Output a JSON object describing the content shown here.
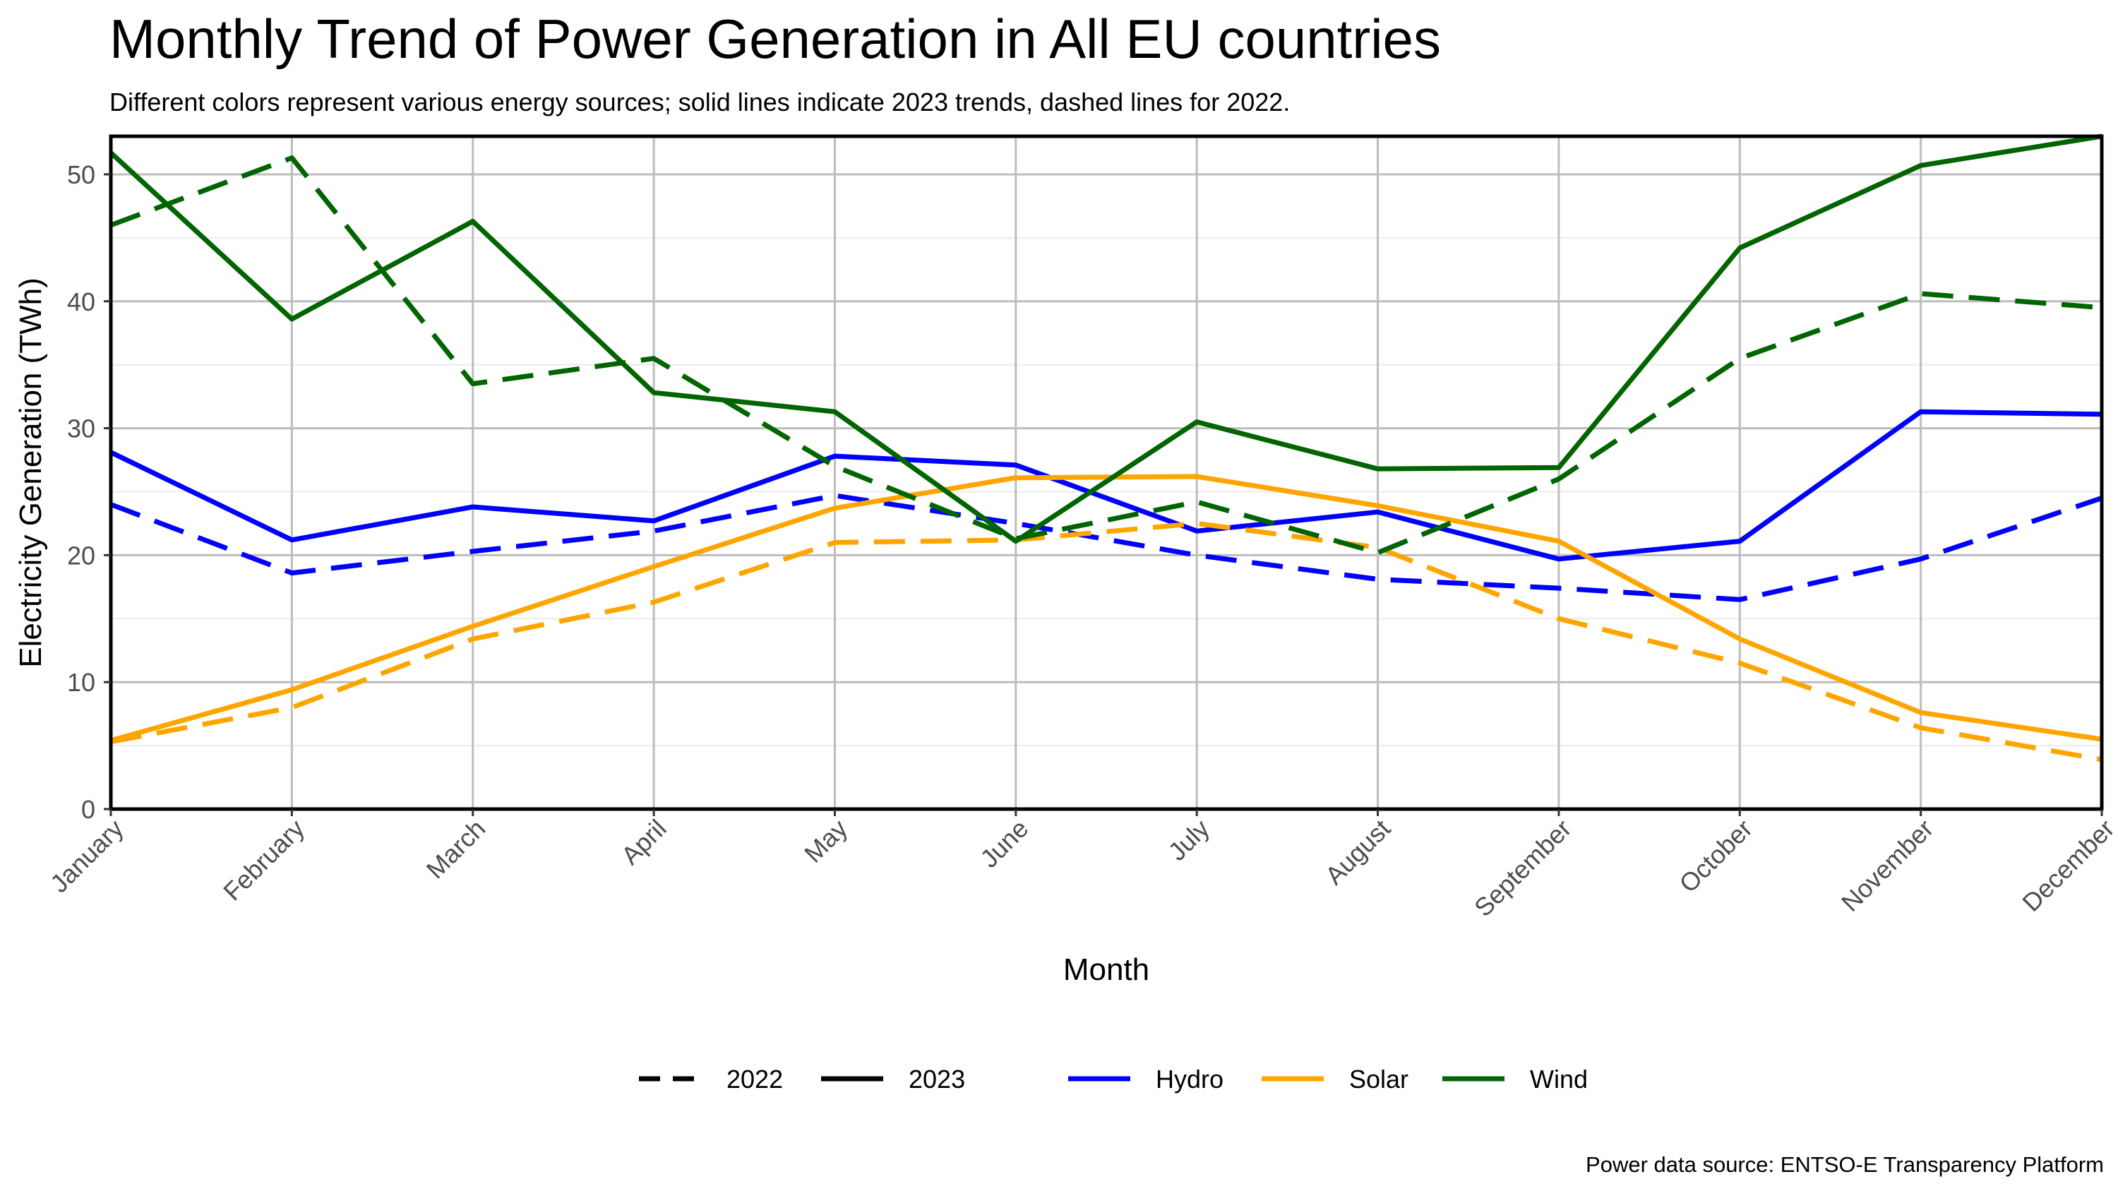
{
  "chart_data": {
    "type": "line",
    "title": "Monthly Trend of Power Generation in All EU countries",
    "subtitle": "Different colors represent various energy sources; solid lines indicate 2023 trends, dashed lines for 2022.",
    "xlabel": "Month",
    "ylabel": "Electricity Generation (TWh)",
    "caption": "Power data source: ENTSO-E Transparency Platform",
    "categories": [
      "January",
      "February",
      "March",
      "April",
      "May",
      "June",
      "July",
      "August",
      "September",
      "October",
      "November",
      "December"
    ],
    "ylim": [
      0,
      53
    ],
    "yticks": [
      0,
      10,
      20,
      30,
      40,
      50
    ],
    "grid": true,
    "legend_position": "bottom",
    "series": [
      {
        "source": "Hydro",
        "year": "2023",
        "color": "#0000FF",
        "dash": false,
        "values": [
          28.1,
          21.2,
          23.8,
          22.7,
          27.8,
          27.1,
          21.9,
          23.4,
          19.7,
          21.1,
          31.3,
          31.1
        ]
      },
      {
        "source": "Hydro",
        "year": "2022",
        "color": "#0000FF",
        "dash": true,
        "values": [
          24.0,
          18.6,
          20.3,
          21.9,
          24.7,
          22.5,
          20.0,
          18.1,
          17.4,
          16.5,
          19.7,
          24.5
        ]
      },
      {
        "source": "Solar",
        "year": "2023",
        "color": "#FFA500",
        "dash": false,
        "values": [
          5.4,
          9.4,
          14.4,
          19.1,
          23.7,
          26.1,
          26.2,
          23.9,
          21.1,
          13.4,
          7.6,
          5.5
        ]
      },
      {
        "source": "Solar",
        "year": "2022",
        "color": "#FFA500",
        "dash": true,
        "values": [
          5.3,
          8.0,
          13.4,
          16.3,
          21.0,
          21.2,
          22.5,
          20.6,
          15.0,
          11.5,
          6.4,
          3.9
        ]
      },
      {
        "source": "Wind",
        "year": "2023",
        "color": "#006400",
        "dash": false,
        "values": [
          51.7,
          38.6,
          46.3,
          32.8,
          31.3,
          21.1,
          30.5,
          26.8,
          26.9,
          44.2,
          50.7,
          53.0
        ]
      },
      {
        "source": "Wind",
        "year": "2022",
        "color": "#006400",
        "dash": true,
        "values": [
          46.0,
          51.3,
          33.5,
          35.5,
          27.0,
          21.3,
          24.2,
          20.2,
          26.0,
          35.5,
          40.6,
          39.5
        ]
      }
    ],
    "legend": {
      "linetype": [
        {
          "label": "2022",
          "dash": true
        },
        {
          "label": "2023",
          "dash": false
        }
      ],
      "color": [
        {
          "label": "Hydro",
          "color": "#0000FF"
        },
        {
          "label": "Solar",
          "color": "#FFA500"
        },
        {
          "label": "Wind",
          "color": "#006400"
        }
      ]
    }
  }
}
